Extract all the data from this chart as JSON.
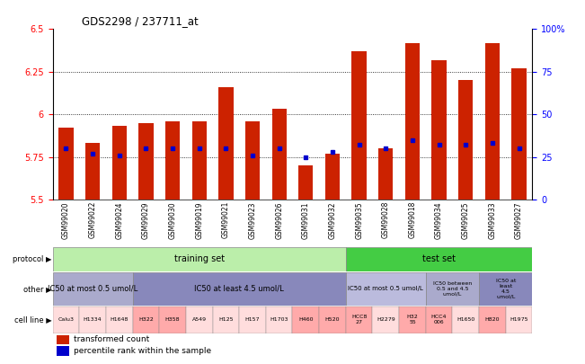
{
  "title": "GDS2298 / 237711_at",
  "samples": [
    "GSM99020",
    "GSM99022",
    "GSM99024",
    "GSM99029",
    "GSM99030",
    "GSM99019",
    "GSM99021",
    "GSM99023",
    "GSM99026",
    "GSM99031",
    "GSM99032",
    "GSM99035",
    "GSM99028",
    "GSM99018",
    "GSM99034",
    "GSM99025",
    "GSM99033",
    "GSM99027"
  ],
  "bar_heights": [
    5.92,
    5.83,
    5.93,
    5.95,
    5.96,
    5.96,
    6.16,
    5.96,
    6.03,
    5.7,
    5.77,
    6.37,
    5.8,
    6.42,
    6.32,
    6.2,
    6.42,
    6.27
  ],
  "blue_dots": [
    5.8,
    5.77,
    5.76,
    5.8,
    5.8,
    5.8,
    5.8,
    5.76,
    5.8,
    5.75,
    5.78,
    5.82,
    5.8,
    5.85,
    5.82,
    5.82,
    5.83,
    5.8
  ],
  "ymin": 5.5,
  "ymax": 6.5,
  "yticks": [
    5.5,
    5.75,
    6.0,
    6.25,
    6.5
  ],
  "ytick_labels": [
    "5.5",
    "5.75",
    "6",
    "6.25",
    "6.5"
  ],
  "right_yticks": [
    0,
    25,
    50,
    75,
    100
  ],
  "right_ytick_labels": [
    "0",
    "25",
    "50",
    "75",
    "100%"
  ],
  "bar_color": "#cc2200",
  "dot_color": "#0000cc",
  "training_count": 11,
  "test_count": 7,
  "training_color": "#bbeeaa",
  "test_color": "#44cc44",
  "other_segments": [
    {
      "start": 0,
      "end": 3,
      "color": "#aaaacc",
      "label": "IC50 at most 0.5 umol/L",
      "fs": 6
    },
    {
      "start": 3,
      "end": 11,
      "color": "#8888bb",
      "label": "IC50 at least 4.5 umol/L",
      "fs": 6
    },
    {
      "start": 11,
      "end": 14,
      "color": "#bbbbdd",
      "label": "IC50 at most 0.5 umol/L",
      "fs": 5
    },
    {
      "start": 14,
      "end": 16,
      "color": "#aaaacc",
      "label": "IC50 between\n0.5 and 4.5\numol/L",
      "fs": 4.5
    },
    {
      "start": 16,
      "end": 18,
      "color": "#8888bb",
      "label": "IC50 at\nleast\n4.5\numol/L",
      "fs": 4.5
    }
  ],
  "cell_lines": [
    "Calu3",
    "H1334",
    "H1648",
    "H322",
    "H358",
    "A549",
    "H125",
    "H157",
    "H1703",
    "H460",
    "H520",
    "HCC8\n27",
    "H2279",
    "H32\n55",
    "HCC4\n006",
    "H1650",
    "H820",
    "H1975"
  ],
  "cell_line_colors": [
    "#ffdddd",
    "#ffdddd",
    "#ffdddd",
    "#ffaaaa",
    "#ffaaaa",
    "#ffdddd",
    "#ffdddd",
    "#ffdddd",
    "#ffdddd",
    "#ffaaaa",
    "#ffaaaa",
    "#ffaaaa",
    "#ffdddd",
    "#ffaaaa",
    "#ffaaaa",
    "#ffdddd",
    "#ffaaaa",
    "#ffdddd"
  ]
}
